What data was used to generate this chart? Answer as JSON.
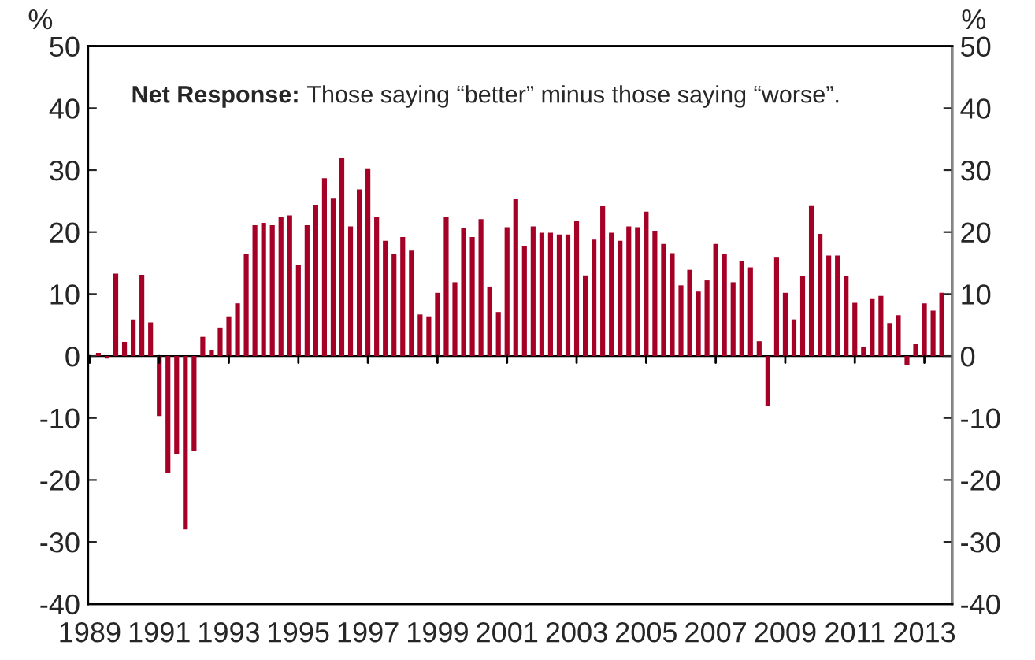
{
  "chart_data": {
    "type": "bar",
    "annotations": [
      "Net Response:",
      "Those saying “better” minus those saying “worse”."
    ],
    "ylabel": "%",
    "y2label": "%",
    "x": [
      1989.25,
      1989.5,
      1989.75,
      1990,
      1990.25,
      1990.5,
      1990.75,
      1991,
      1991.25,
      1991.5,
      1991.75,
      1992,
      1992.25,
      1992.5,
      1992.75,
      1993,
      1993.25,
      1993.5,
      1993.75,
      1994,
      1994.25,
      1994.5,
      1994.75,
      1995,
      1995.25,
      1995.5,
      1995.75,
      1996,
      1996.25,
      1996.5,
      1996.75,
      1997,
      1997.25,
      1997.5,
      1997.75,
      1998,
      1998.25,
      1998.5,
      1998.75,
      1999,
      1999.25,
      1999.5,
      1999.75,
      2000,
      2000.25,
      2000.5,
      2000.75,
      2001,
      2001.25,
      2001.5,
      2001.75,
      2002,
      2002.25,
      2002.5,
      2002.75,
      2003,
      2003.25,
      2003.5,
      2003.75,
      2004,
      2004.25,
      2004.5,
      2004.75,
      2005,
      2005.25,
      2005.5,
      2005.75,
      2006,
      2006.25,
      2006.5,
      2006.75,
      2007,
      2007.25,
      2007.5,
      2007.75,
      2008,
      2008.25,
      2008.5,
      2008.75,
      2009,
      2009.25,
      2009.5,
      2009.75,
      2010,
      2010.25,
      2010.5,
      2010.75,
      2011,
      2011.25,
      2011.5,
      2011.75,
      2012,
      2012.25,
      2012.5,
      2012.75,
      2013,
      2013.25,
      2013.5
    ],
    "values": [
      0.5,
      -0.4,
      13.3,
      2.3,
      5.9,
      13.1,
      5.4,
      -9.7,
      -18.9,
      -15.8,
      -28.0,
      -15.3,
      3.1,
      1.0,
      4.6,
      6.4,
      8.5,
      16.4,
      21.1,
      21.5,
      21.1,
      22.5,
      22.7,
      14.7,
      21.1,
      24.4,
      28.7,
      25.4,
      31.9,
      20.9,
      26.9,
      30.3,
      22.5,
      18.6,
      16.4,
      19.2,
      17.0,
      6.7,
      6.4,
      10.2,
      22.5,
      11.9,
      20.6,
      19.2,
      22.1,
      11.2,
      7.1,
      20.8,
      25.3,
      17.8,
      20.9,
      19.9,
      19.9,
      19.6,
      19.6,
      21.8,
      13.0,
      18.8,
      24.2,
      19.9,
      18.6,
      20.9,
      20.8,
      23.3,
      20.2,
      18.1,
      16.6,
      11.4,
      13.9,
      10.4,
      12.2,
      18.1,
      16.4,
      11.9,
      15.3,
      14.3,
      2.4,
      -8.0,
      16.0,
      10.2,
      5.9,
      12.9,
      24.3,
      19.7,
      16.2,
      16.2,
      12.9,
      8.6,
      1.4,
      9.2,
      9.7,
      5.3,
      6.6,
      -1.4,
      1.9,
      8.5,
      7.3,
      10.2
    ],
    "color": "#a50026",
    "xlim": [
      1988.95,
      2013.8
    ],
    "xticks": [
      1989,
      1991,
      1993,
      1995,
      1997,
      1999,
      2001,
      2003,
      2005,
      2007,
      2009,
      2011,
      2013
    ],
    "ylim": [
      -40,
      50
    ],
    "yticks": [
      -40,
      -30,
      -20,
      -10,
      0,
      10,
      20,
      30,
      40,
      50
    ],
    "y2lim": [
      -40,
      50
    ],
    "y2ticks": [
      -40,
      -30,
      -20,
      -10,
      0,
      10,
      20,
      30,
      40,
      50
    ],
    "ref_lines": [
      {
        "axis": "y",
        "value": 0,
        "color": "#000000"
      }
    ],
    "grid": false,
    "legend": false
  }
}
